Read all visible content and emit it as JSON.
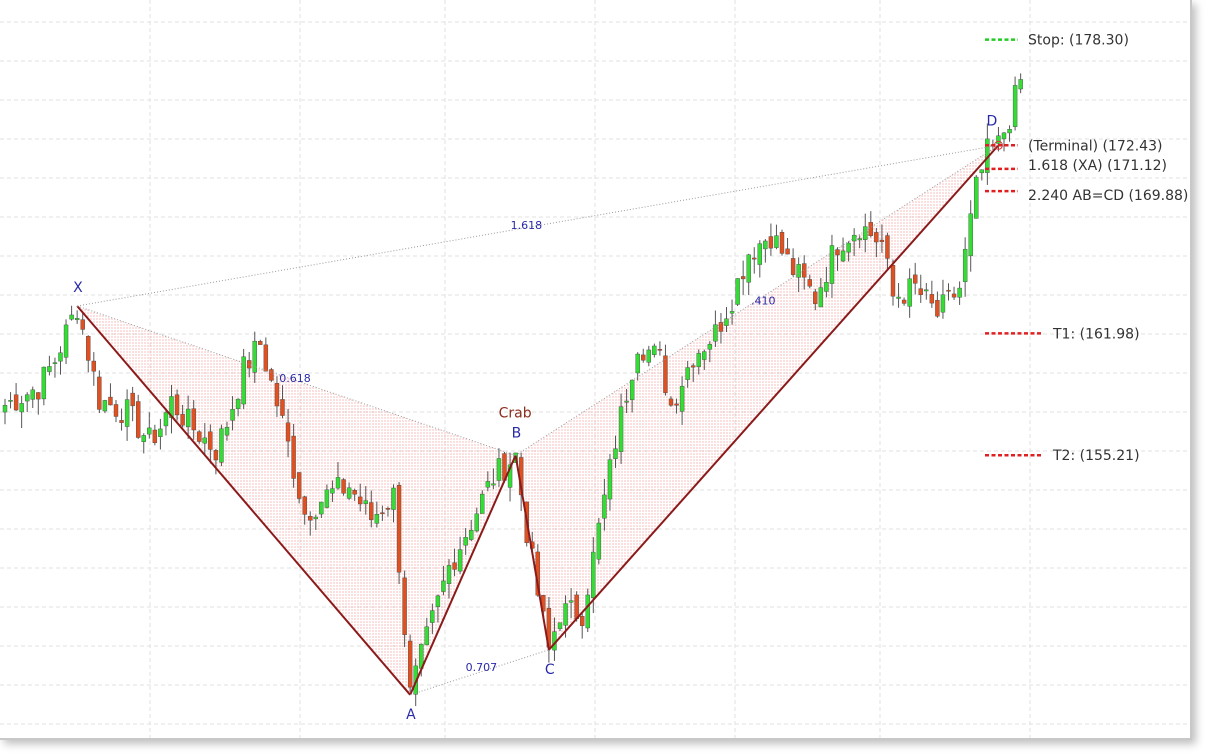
{
  "chart_data": {
    "type": "candlestick",
    "pattern": {
      "name": "Crab",
      "points": [
        {
          "label": "X",
          "index": 13,
          "price": 163.5
        },
        {
          "label": "A",
          "index": 73,
          "price": 141.9
        },
        {
          "label": "B",
          "index": 92,
          "price": 155.2
        },
        {
          "label": "C",
          "index": 98,
          "price": 144.4
        },
        {
          "label": "D",
          "index": 179,
          "price": 172.43
        }
      ],
      "ratios": [
        {
          "label": "0.618",
          "between": "XB"
        },
        {
          "label": "0.707",
          "between": "AC"
        },
        {
          "label": "1.618",
          "between": "XD"
        },
        {
          "label": ".410",
          "between": "BD"
        }
      ]
    },
    "levels": [
      {
        "text": "Stop: (178.30)",
        "price": 178.3,
        "color": "#22cc22"
      },
      {
        "text": "(Terminal) (172.43)",
        "price": 172.43,
        "color": "#e02020"
      },
      {
        "text": "1.618 (XA) (171.12)",
        "price": 171.12,
        "color": "#e02020"
      },
      {
        "text": "2.240 AB=CD (169.88)",
        "price": 169.88,
        "color": "#e02020"
      },
      {
        "text": "T1: (161.98)",
        "price": 161.98,
        "color": "#e02020"
      },
      {
        "text": "T2: (155.21)",
        "price": 155.21,
        "color": "#e02020"
      }
    ],
    "colors": {
      "up": "#33dd33",
      "down": "#e05020",
      "pattern_line": "#8b1a1a",
      "pattern_fill": "#f08080"
    },
    "anchors": [
      [
        0,
        158.0
      ],
      [
        6,
        159.0
      ],
      [
        9,
        160.5
      ],
      [
        13,
        163.5
      ],
      [
        17,
        158.3
      ],
      [
        22,
        157.6
      ],
      [
        26,
        156.0
      ],
      [
        28,
        156.8
      ],
      [
        30,
        158.2
      ],
      [
        33,
        157.0
      ],
      [
        38,
        155.5
      ],
      [
        40,
        157.0
      ],
      [
        43,
        160.0
      ],
      [
        46,
        161.4
      ],
      [
        50,
        157.0
      ],
      [
        54,
        152.0
      ],
      [
        58,
        153.0
      ],
      [
        62,
        153.5
      ],
      [
        66,
        151.7
      ],
      [
        70,
        153.0
      ],
      [
        73,
        141.9
      ],
      [
        76,
        145.0
      ],
      [
        80,
        149.0
      ],
      [
        84,
        151.5
      ],
      [
        88,
        154.0
      ],
      [
        92,
        155.2
      ],
      [
        94,
        151.0
      ],
      [
        96,
        147.5
      ],
      [
        98,
        144.4
      ],
      [
        100,
        146.5
      ],
      [
        104,
        146.5
      ],
      [
        106,
        149.5
      ],
      [
        110,
        156.0
      ],
      [
        114,
        161.5
      ],
      [
        118,
        160.5
      ],
      [
        120,
        158.0
      ],
      [
        124,
        160.8
      ],
      [
        128,
        162.0
      ],
      [
        131,
        164.0
      ],
      [
        134,
        166.5
      ],
      [
        138,
        167.5
      ],
      [
        142,
        165.5
      ],
      [
        146,
        164.0
      ],
      [
        150,
        167.0
      ],
      [
        154,
        168.0
      ],
      [
        158,
        167.0
      ],
      [
        160,
        164.0
      ],
      [
        164,
        164.5
      ],
      [
        168,
        163.0
      ],
      [
        172,
        164.5
      ],
      [
        175,
        170.0
      ],
      [
        177,
        172.0
      ],
      [
        179,
        172.43
      ],
      [
        181,
        174.0
      ],
      [
        183,
        176.0
      ]
    ],
    "ylim": [
      139.5,
      180.5
    ]
  }
}
